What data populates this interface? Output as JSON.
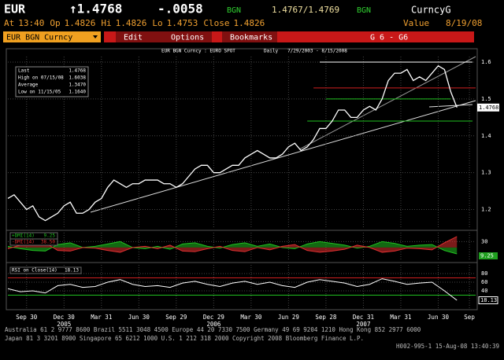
{
  "header": {
    "ticker": "EUR",
    "price": "↑1.4768",
    "change": "-.0058",
    "source": "BGN",
    "bid_ask": "1.4767/1.4769",
    "source2": "BGN",
    "market": "CurncyG",
    "fields": [
      {
        "label": "At",
        "value": "13:40"
      },
      {
        "label": "Op",
        "value": "1.4826"
      },
      {
        "label": "Hi",
        "value": "1.4826"
      },
      {
        "label": "Lo",
        "value": "1.4753"
      },
      {
        "label": "Close",
        "value": "1.4826"
      }
    ],
    "value_label": "Value",
    "value_date": "8/19/08"
  },
  "menu": {
    "security": "EUR BGN Curncy",
    "items": [
      "Edit",
      "Options",
      "Bookmarks"
    ],
    "page": "G 6 - G6"
  },
  "chart_data": [
    {
      "type": "line",
      "title": "EUR BGN Curncy : EURO SPOT",
      "frequency": "Daily",
      "range": "7/29/2003 - 8/15/2008",
      "stats": [
        {
          "label": "Last",
          "value": "1.4768"
        },
        {
          "label": "High on 07/15/08",
          "value": "1.6038"
        },
        {
          "label": "Average",
          "value": "1.3470"
        },
        {
          "label": "Low on 11/15/05",
          "value": "1.1640"
        }
      ],
      "series": [
        {
          "name": "EUR",
          "color": "#ffffff",
          "values": [
            1.23,
            1.24,
            1.22,
            1.2,
            1.21,
            1.18,
            1.17,
            1.18,
            1.19,
            1.21,
            1.22,
            1.19,
            1.19,
            1.2,
            1.22,
            1.23,
            1.26,
            1.28,
            1.27,
            1.26,
            1.27,
            1.27,
            1.28,
            1.28,
            1.28,
            1.27,
            1.27,
            1.26,
            1.27,
            1.29,
            1.31,
            1.32,
            1.32,
            1.3,
            1.3,
            1.31,
            1.32,
            1.32,
            1.34,
            1.35,
            1.36,
            1.35,
            1.34,
            1.34,
            1.35,
            1.37,
            1.38,
            1.36,
            1.37,
            1.39,
            1.42,
            1.42,
            1.44,
            1.47,
            1.47,
            1.45,
            1.45,
            1.47,
            1.48,
            1.47,
            1.5,
            1.55,
            1.57,
            1.57,
            1.58,
            1.55,
            1.56,
            1.55,
            1.57,
            1.59,
            1.58,
            1.52,
            1.4768
          ]
        }
      ],
      "xlim": [
        0,
        75
      ],
      "xticks": [
        {
          "value": 3,
          "label": "Sep 30"
        },
        {
          "value": 9,
          "label": "Dec 30"
        },
        {
          "value": 15,
          "label": "Mar 31"
        },
        {
          "value": 21,
          "label": "Jun 30"
        },
        {
          "value": 27,
          "label": "Sep 29"
        },
        {
          "value": 33,
          "label": "Dec 29"
        },
        {
          "value": 39,
          "label": "Mar 30"
        },
        {
          "value": 45,
          "label": "Jun 29"
        },
        {
          "value": 51,
          "label": "Sep 28"
        },
        {
          "value": 57,
          "label": "Dec 31"
        },
        {
          "value": 63,
          "label": "Mar 31"
        },
        {
          "value": 69,
          "label": "Jun 30"
        },
        {
          "value": 74,
          "label": "Sep"
        }
      ],
      "years": [
        {
          "value": 9,
          "label": "2005"
        },
        {
          "value": 33,
          "label": "2006"
        },
        {
          "value": 57,
          "label": "2007"
        }
      ],
      "ylim": [
        1.15,
        1.615
      ],
      "yticks": [
        1.2,
        1.3,
        1.4,
        1.5,
        1.6
      ],
      "hlines": [
        {
          "value": 1.6,
          "color": "#ffffff"
        },
        {
          "value": 1.53,
          "color": "#d02020"
        },
        {
          "value": 1.5,
          "color": "#20c020"
        },
        {
          "value": 1.44,
          "color": "#20c020"
        }
      ],
      "grid": true
    },
    {
      "type": "line",
      "series": [
        {
          "name": "+DMI(14)",
          "color": "#20c020",
          "values": [
            22,
            18,
            15,
            14,
            25,
            28,
            20,
            22,
            26,
            30,
            20,
            18,
            22,
            17,
            26,
            28,
            22,
            19,
            25,
            28,
            22,
            26,
            20,
            18,
            26,
            30,
            27,
            24,
            19,
            22,
            30,
            27,
            22,
            24,
            25,
            15,
            9.25
          ]
        },
        {
          "name": "-DMI(14)",
          "color": "#e03030",
          "values": [
            18,
            24,
            26,
            28,
            15,
            14,
            20,
            19,
            15,
            12,
            20,
            22,
            18,
            24,
            14,
            13,
            18,
            22,
            15,
            13,
            20,
            16,
            22,
            25,
            15,
            12,
            14,
            17,
            24,
            20,
            12,
            14,
            19,
            18,
            16,
            28,
            38.5
          ],
          "last_label": "38.50"
        }
      ],
      "xlim": [
        0,
        37.5
      ],
      "ylim": [
        0,
        45
      ],
      "yticks": [
        30
      ]
    },
    {
      "type": "line",
      "series": [
        {
          "name": "RSI on Close(14)",
          "color": "#ffffff",
          "values": [
            45,
            38,
            40,
            35,
            52,
            55,
            48,
            50,
            60,
            66,
            55,
            50,
            52,
            48,
            58,
            62,
            55,
            50,
            58,
            62,
            55,
            60,
            52,
            48,
            60,
            66,
            62,
            58,
            50,
            55,
            68,
            62,
            55,
            58,
            60,
            40,
            18.13
          ]
        }
      ],
      "xlim": [
        0,
        37.5
      ],
      "ylim": [
        0,
        100
      ],
      "yticks": [
        40,
        60,
        80
      ],
      "hlines": [
        {
          "value": 70,
          "color": "#d02020"
        },
        {
          "value": 30,
          "color": "#20c020"
        }
      ]
    }
  ],
  "footer": {
    "line1": "Australia 61 2 9777 8600 Brazil 5511 3048 4500 Europe 44 20 7330 7500 Germany 49 69 9204 1210 Hong Kong 852 2977 6000",
    "line2": "Japan 81 3 3201 8900     Singapore 65 6212 1000     U.S. 1 212 318 2000     Copyright 2008 Bloomberg Finance L.P.",
    "line3": "H002-995-1 15-Aug-08 13:40:39"
  }
}
